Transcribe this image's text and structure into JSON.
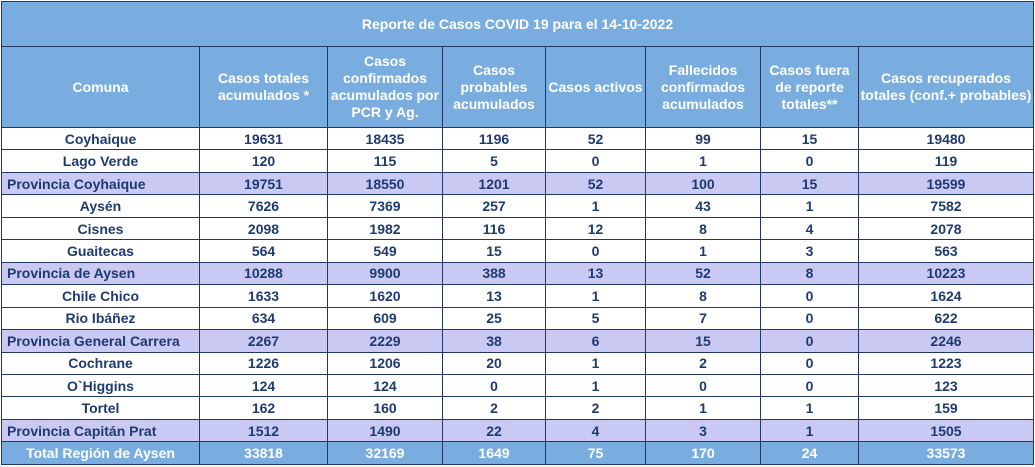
{
  "title": "Reporte de Casos COVID 19  para el 14-10-2022",
  "headers": [
    "Comuna",
    "Casos totales acumulados *",
    "Casos confirmados acumulados por PCR y Ag.",
    "Casos probables acumulados",
    "Casos activos",
    "Fallecidos confirmados acumulados",
    "Casos fuera de reporte totales**",
    "Casos recuperados  totales (conf.+ probables)"
  ],
  "rows": [
    {
      "type": "comuna",
      "cells": [
        "Coyhaique",
        "19631",
        "18435",
        "1196",
        "52",
        "99",
        "15",
        "19480"
      ]
    },
    {
      "type": "comuna",
      "cells": [
        "Lago Verde",
        "120",
        "115",
        "5",
        "0",
        "1",
        "0",
        "119"
      ]
    },
    {
      "type": "provincia",
      "cells": [
        "Provincia Coyhaique",
        "19751",
        "18550",
        "1201",
        "52",
        "100",
        "15",
        "19599"
      ]
    },
    {
      "type": "comuna",
      "cells": [
        "Aysén",
        "7626",
        "7369",
        "257",
        "1",
        "43",
        "1",
        "7582"
      ]
    },
    {
      "type": "comuna",
      "cells": [
        "Cisnes",
        "2098",
        "1982",
        "116",
        "12",
        "8",
        "4",
        "2078"
      ]
    },
    {
      "type": "comuna",
      "cells": [
        "Guaitecas",
        "564",
        "549",
        "15",
        "0",
        "1",
        "3",
        "563"
      ]
    },
    {
      "type": "provincia",
      "cells": [
        "Provincia de Aysen",
        "10288",
        "9900",
        "388",
        "13",
        "52",
        "8",
        "10223"
      ]
    },
    {
      "type": "comuna",
      "cells": [
        "Chile Chico",
        "1633",
        "1620",
        "13",
        "1",
        "8",
        "0",
        "1624"
      ]
    },
    {
      "type": "comuna",
      "cells": [
        "Rio Ibáñez",
        "634",
        "609",
        "25",
        "5",
        "7",
        "0",
        "622"
      ]
    },
    {
      "type": "provincia",
      "cells": [
        "Provincia General Carrera",
        "2267",
        "2229",
        "38",
        "6",
        "15",
        "0",
        "2246"
      ]
    },
    {
      "type": "comuna",
      "cells": [
        "Cochrane",
        "1226",
        "1206",
        "20",
        "1",
        "2",
        "0",
        "1223"
      ]
    },
    {
      "type": "comuna",
      "cells": [
        "O`Higgins",
        "124",
        "124",
        "0",
        "1",
        "0",
        "0",
        "123"
      ]
    },
    {
      "type": "comuna",
      "cells": [
        "Tortel",
        "162",
        "160",
        "2",
        "2",
        "1",
        "1",
        "159"
      ]
    },
    {
      "type": "provincia",
      "cells": [
        "Provincia Capitán Prat",
        "1512",
        "1490",
        "22",
        "4",
        "3",
        "1",
        "1505"
      ]
    },
    {
      "type": "total",
      "cells": [
        "Total Región de Aysen",
        "33818",
        "32169",
        "1649",
        "75",
        "170",
        "24",
        "33573"
      ]
    }
  ]
}
